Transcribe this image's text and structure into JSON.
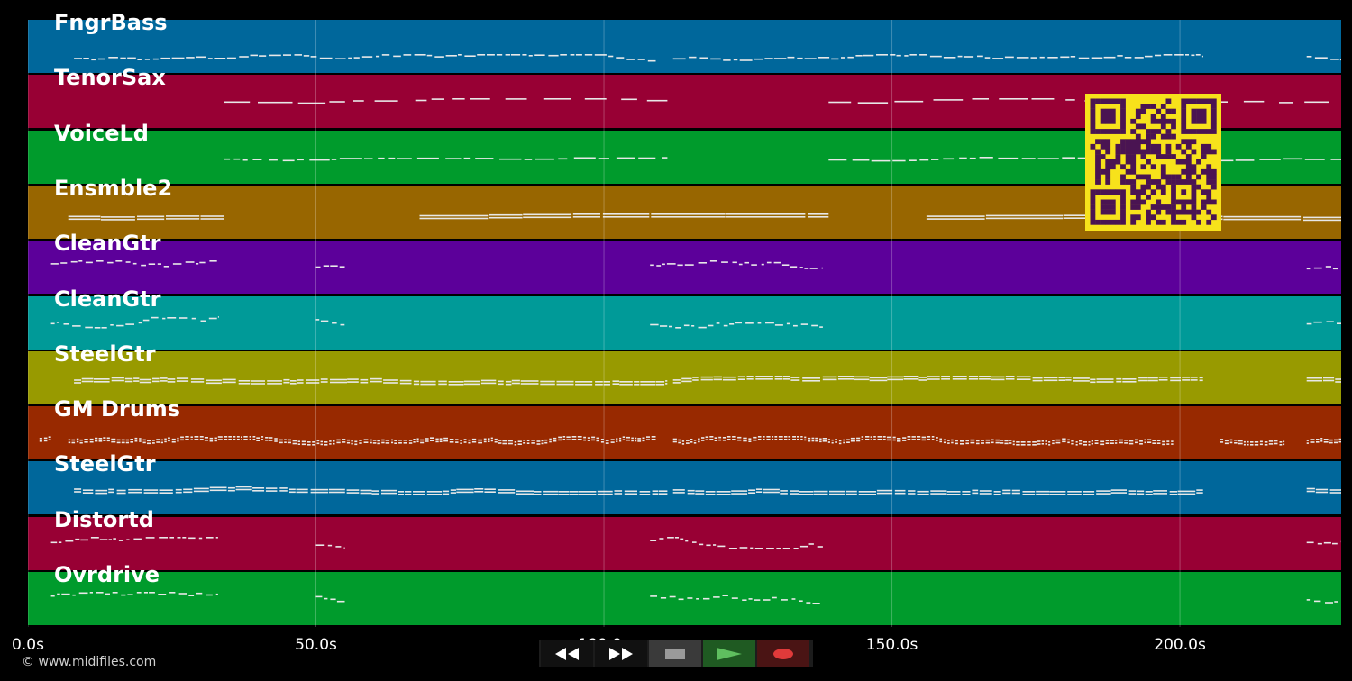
{
  "timeline": {
    "duration_s": 228,
    "ticks": [
      {
        "value": 0,
        "label": "0.0s"
      },
      {
        "value": 50,
        "label": "50.0s"
      },
      {
        "value": 100,
        "label": "100.0s"
      },
      {
        "value": 150,
        "label": "150.0s"
      },
      {
        "value": 200,
        "label": "200.0s"
      }
    ]
  },
  "tracks": [
    {
      "name": "FngrBass",
      "color": "#00679b",
      "style": "bass"
    },
    {
      "name": "TenorSax",
      "color": "#980034",
      "style": "sax"
    },
    {
      "name": "VoiceLd",
      "color": "#009b2c",
      "style": "voice"
    },
    {
      "name": "Ensmble2",
      "color": "#986600",
      "style": "ensemble"
    },
    {
      "name": "CleanGtr",
      "color": "#5c009a",
      "style": "lead"
    },
    {
      "name": "CleanGtr",
      "color": "#009a98",
      "style": "lead"
    },
    {
      "name": "SteelGtr",
      "color": "#989a00",
      "style": "rhythm"
    },
    {
      "name": "GM Drums",
      "color": "#982900",
      "style": "drums"
    },
    {
      "name": "SteelGtr",
      "color": "#00679b",
      "style": "rhythm"
    },
    {
      "name": "Distortd",
      "color": "#980034",
      "style": "lead"
    },
    {
      "name": "Ovrdrive",
      "color": "#009b2c",
      "style": "lead"
    }
  ],
  "transport": {
    "rewind_icon": "rewind-icon",
    "forward_icon": "fast-forward-icon",
    "stop_icon": "stop-icon",
    "play_icon": "play-icon",
    "record_icon": "record-icon",
    "play_color": "#5fbf5f",
    "record_color": "#e03a3a"
  },
  "copyright": "© www.midifiles.com",
  "qr_code": "qr-code"
}
